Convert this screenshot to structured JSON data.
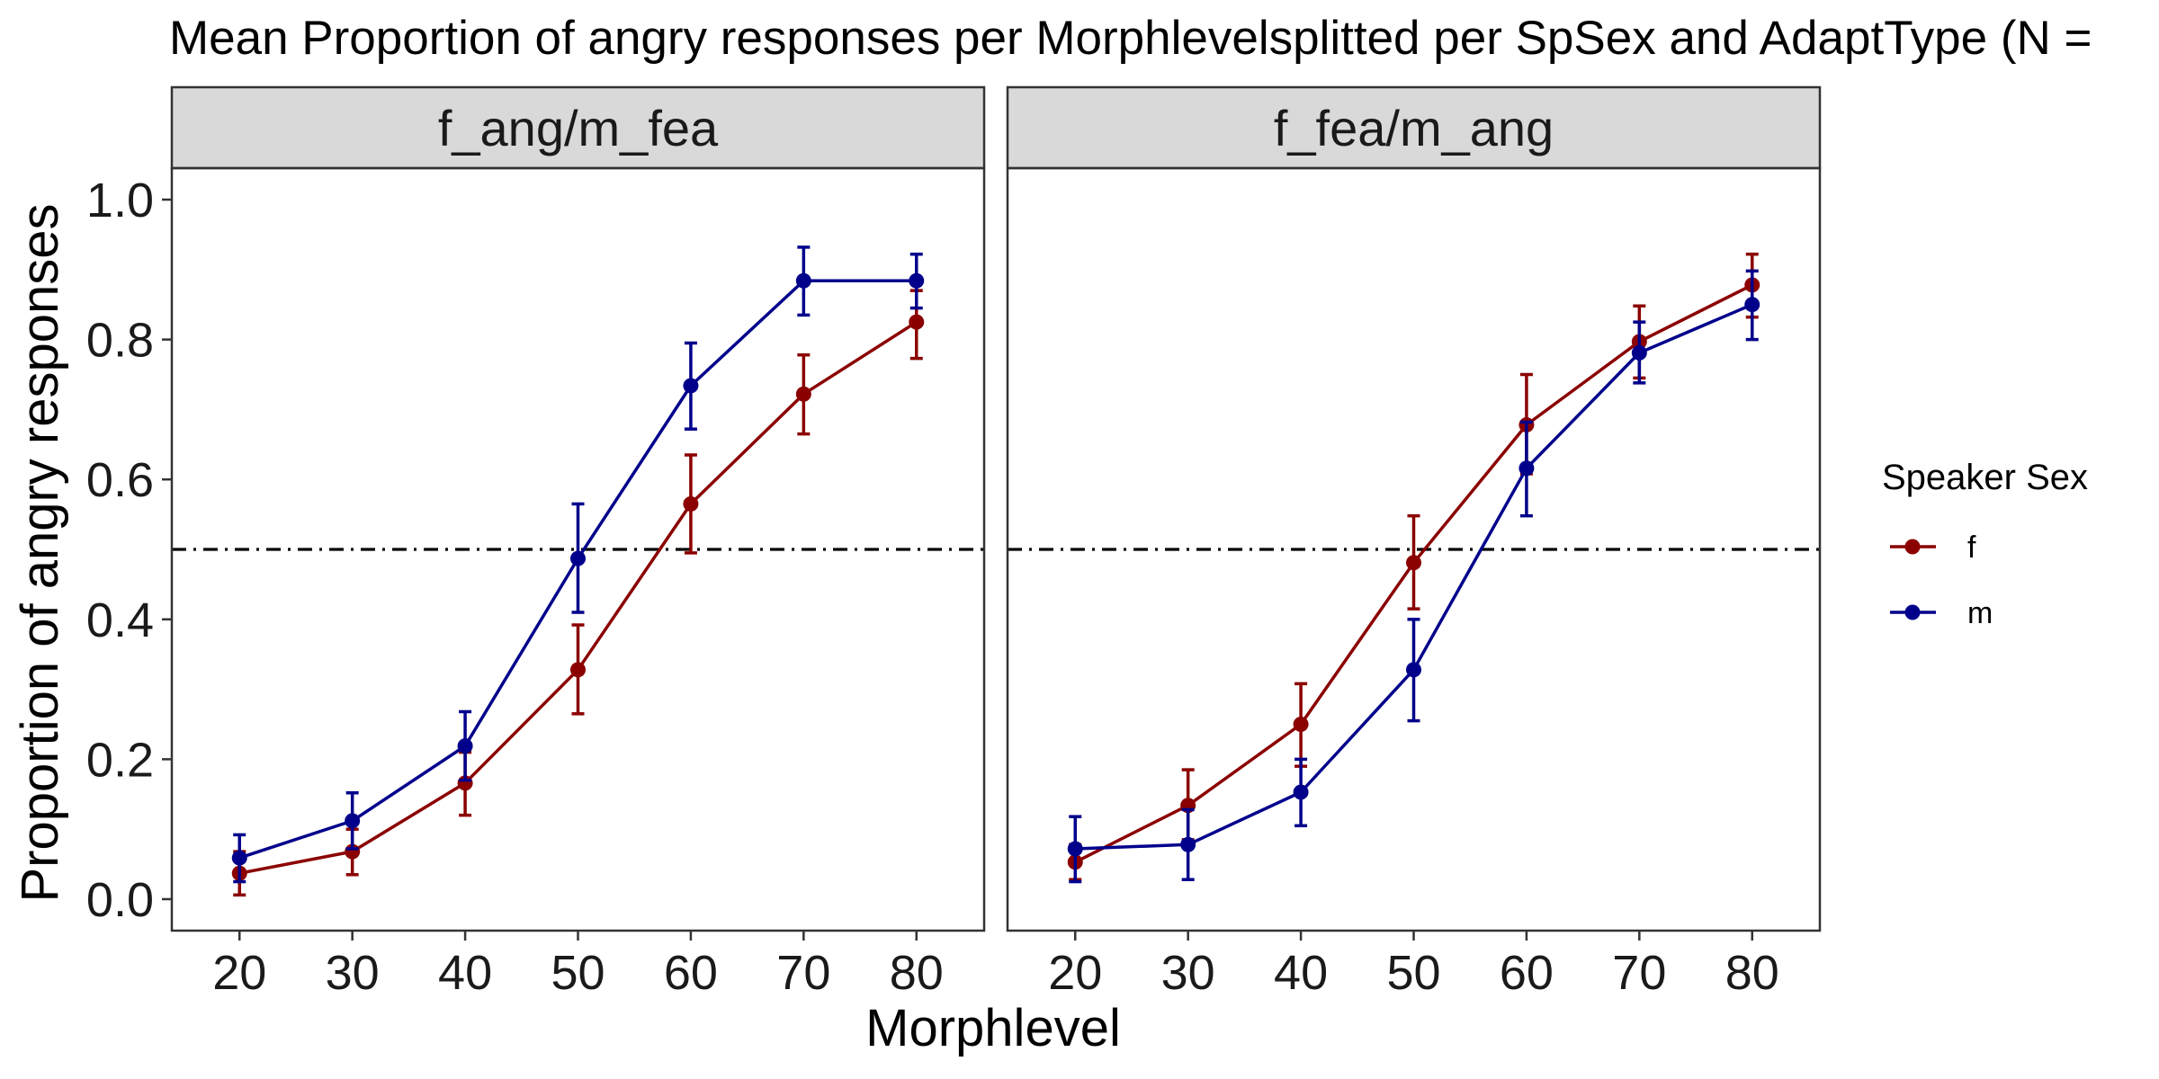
{
  "chart_data": {
    "type": "line",
    "title": "Mean Proportion of angry responses per Morphlevelsplitted per SpSex and AdaptType (N =",
    "xlabel": "Morphlevel",
    "ylabel": "Proportion of angry responses",
    "x": [
      20,
      30,
      40,
      50,
      60,
      70,
      80
    ],
    "x_ticks": [
      "20",
      "30",
      "40",
      "50",
      "60",
      "70",
      "80"
    ],
    "y_ticks": [
      "0.0",
      "0.2",
      "0.4",
      "0.6",
      "0.8",
      "1.0"
    ],
    "xlim": [
      14,
      86
    ],
    "ylim": [
      -0.045,
      1.045
    ],
    "reference_line": 0.5,
    "grid": false,
    "legend": {
      "title": "Speaker Sex",
      "position": "right",
      "entries": [
        {
          "label": "f",
          "color": "#8b0000"
        },
        {
          "label": "m",
          "color": "#00008b"
        }
      ]
    },
    "panels": [
      {
        "strip": "f_ang/m_fea",
        "series": [
          {
            "name": "f",
            "color": "#8b0000",
            "values": [
              0.037,
              0.068,
              0.166,
              0.328,
              0.565,
              0.722,
              0.825
            ],
            "error_low": [
              0.006,
              0.035,
              0.12,
              0.265,
              0.495,
              0.665,
              0.773
            ],
            "error_high": [
              0.068,
              0.1,
              0.21,
              0.392,
              0.635,
              0.778,
              0.87
            ]
          },
          {
            "name": "m",
            "color": "#00008b",
            "values": [
              0.059,
              0.112,
              0.219,
              0.487,
              0.734,
              0.884,
              0.884
            ],
            "error_low": [
              0.025,
              0.072,
              0.17,
              0.41,
              0.672,
              0.835,
              0.845
            ],
            "error_high": [
              0.092,
              0.152,
              0.268,
              0.565,
              0.795,
              0.932,
              0.922
            ]
          }
        ]
      },
      {
        "strip": "f_fea/m_ang",
        "series": [
          {
            "name": "f",
            "color": "#8b0000",
            "values": [
              0.053,
              0.134,
              0.25,
              0.481,
              0.678,
              0.797,
              0.878
            ],
            "error_low": [
              0.028,
              0.085,
              0.19,
              0.415,
              0.608,
              0.745,
              0.832
            ],
            "error_high": [
              0.078,
              0.185,
              0.308,
              0.548,
              0.75,
              0.848,
              0.922
            ]
          },
          {
            "name": "m",
            "color": "#00008b",
            "values": [
              0.072,
              0.078,
              0.153,
              0.328,
              0.616,
              0.781,
              0.85
            ],
            "error_low": [
              0.025,
              0.028,
              0.105,
              0.255,
              0.548,
              0.738,
              0.8
            ],
            "error_high": [
              0.118,
              0.128,
              0.2,
              0.4,
              0.682,
              0.825,
              0.898
            ]
          }
        ]
      }
    ]
  }
}
